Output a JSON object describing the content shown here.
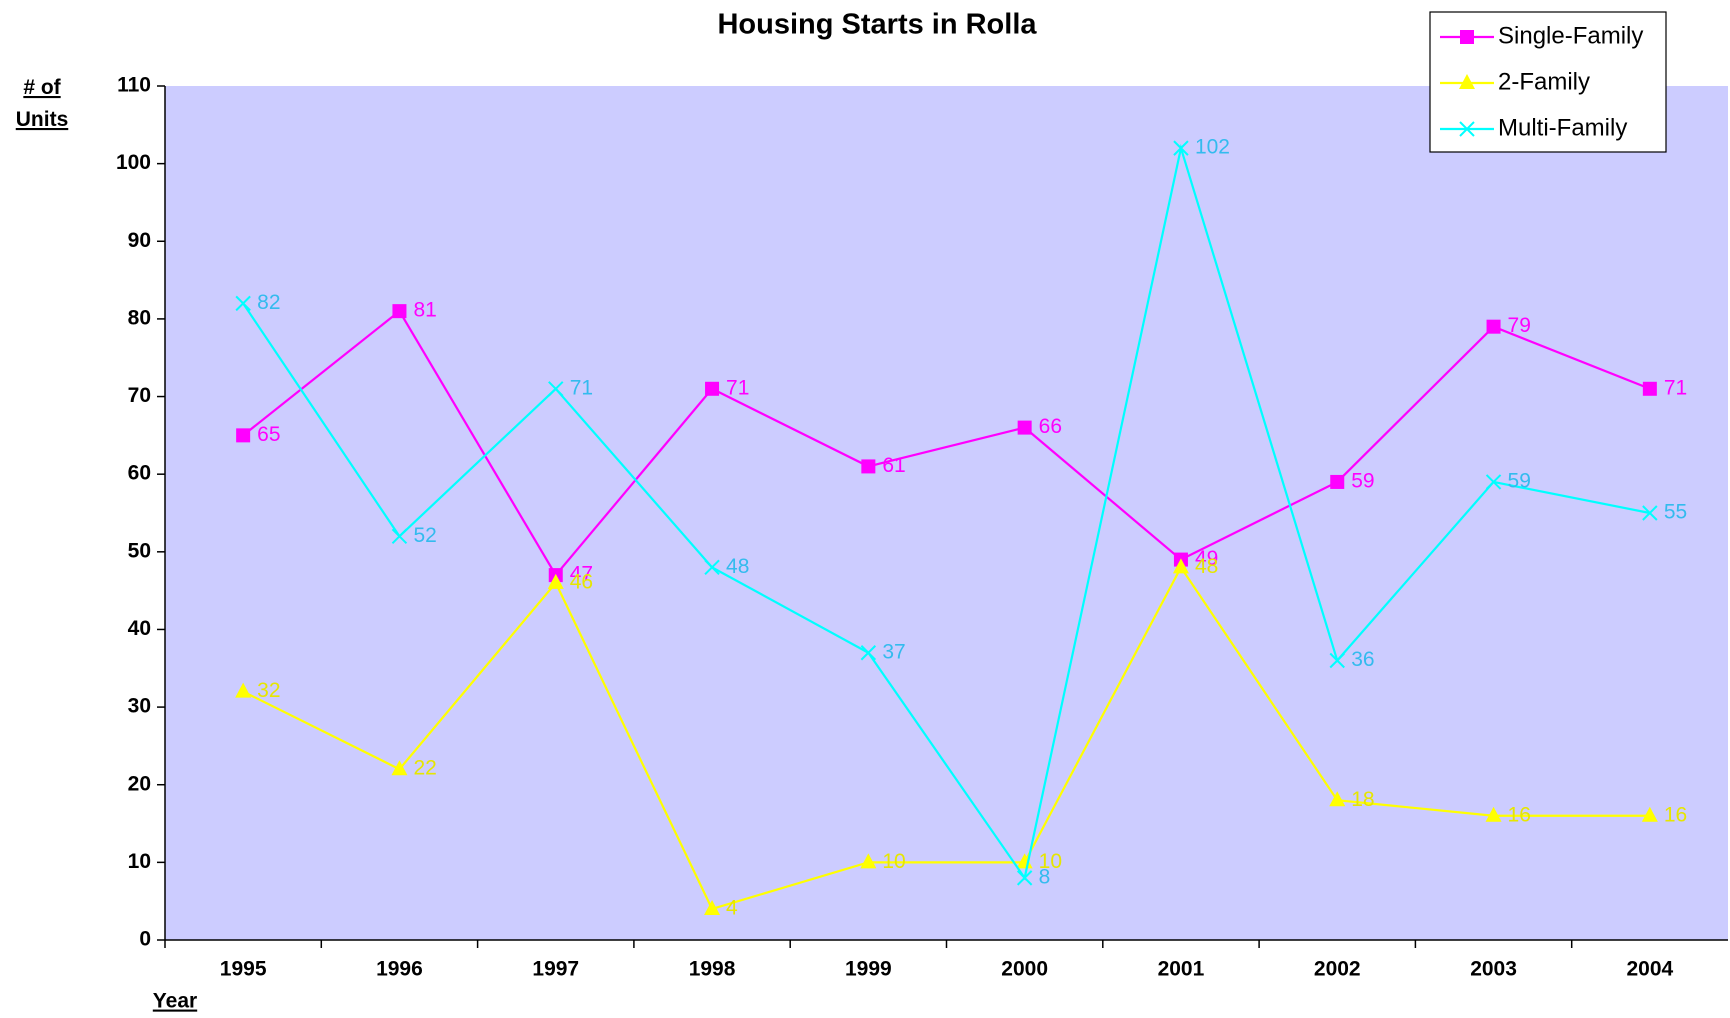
{
  "chart_data": {
    "type": "line",
    "title": "Housing Starts in Rolla",
    "y_label": "# of Units",
    "x_label": "Year",
    "categories": [
      "1995",
      "1996",
      "1997",
      "1998",
      "1999",
      "2000",
      "2001",
      "2002",
      "2003",
      "2004"
    ],
    "series": [
      {
        "name": "Single-Family",
        "color": "#ff00ff",
        "label_color": "#ff00ff",
        "marker": "square",
        "values": [
          65,
          81,
          47,
          71,
          61,
          66,
          49,
          59,
          79,
          71
        ]
      },
      {
        "name": "2-Family",
        "color": "#ffff00",
        "label_color": "#e6e600",
        "marker": "triangle",
        "values": [
          32,
          22,
          46,
          4,
          10,
          10,
          48,
          18,
          16,
          16
        ]
      },
      {
        "name": "Multi-Family",
        "color": "#00ffff",
        "label_color": "#33bbee",
        "marker": "x",
        "values": [
          82,
          52,
          71,
          48,
          37,
          8,
          102,
          36,
          59,
          55
        ]
      }
    ],
    "ylim": [
      0,
      110
    ],
    "yticks": [
      0,
      10,
      20,
      30,
      40,
      50,
      60,
      70,
      80,
      90,
      100,
      110
    ],
    "plot_background": "#ccccff",
    "legend": "upper right"
  }
}
